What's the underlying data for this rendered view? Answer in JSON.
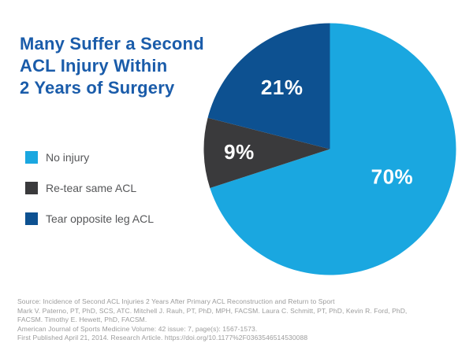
{
  "page": {
    "background": "#FFFFFF"
  },
  "colors": {
    "title": "#1A5CAA",
    "legend_text": "#565759",
    "source_text": "#9B9B9B",
    "value_label": "#FFFFFF",
    "background": "#FFFFFF"
  },
  "chart_data": {
    "type": "pie",
    "title": "Many Suffer a Second\nACL Injury Within\n2 Years of Surgery",
    "slices": [
      {
        "label": "No injury",
        "value": 70,
        "color": "#1AA7E0"
      },
      {
        "label": "Re-tear same ACL",
        "value": 9,
        "color": "#3A3A3C"
      },
      {
        "label": "Tear opposite leg ACL",
        "value": 21,
        "color": "#0D5191"
      }
    ],
    "start_angle_deg": 0,
    "direction": "clockwise",
    "legend_position": "left",
    "value_label_format": "percent",
    "value_labels": [
      "70%",
      "9%",
      "21%"
    ]
  },
  "source": {
    "lines": [
      "Source: Incidence of Second ACL Injuries 2 Years After Primary ACL Reconstruction and Return to Sport",
      "Mark V. Paterno, PT, PhD, SCS, ATC. Mitchell J. Rauh, PT, PhD, MPH, FACSM. Laura C. Schmitt, PT, PhD, Kevin R. Ford, PhD,",
      "FACSM. Timothy E. Hewett, PhD, FACSM.",
      "American Journal of Sports Medicine Volume: 42 issue: 7, page(s): 1567-1573.",
      "First Published April 21, 2014. Research Article. https://doi.org/10.1177%2F0363546514530088"
    ]
  }
}
